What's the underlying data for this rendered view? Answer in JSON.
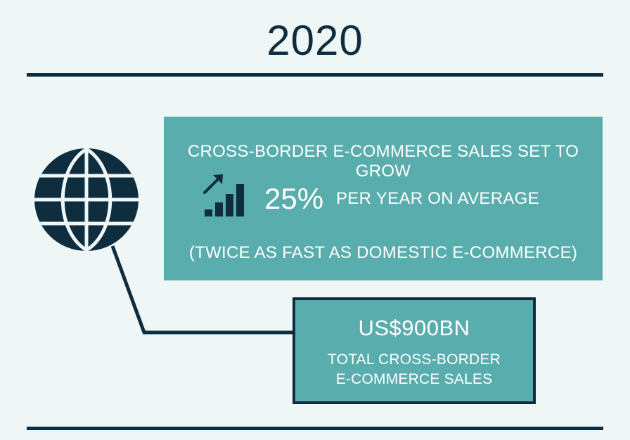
{
  "year": "2020",
  "growth": {
    "headline": "CROSS-BORDER E-COMMERCE SALES SET TO GROW",
    "percent": "25%",
    "percent_caption": "PER YEAR ON AVERAGE",
    "note": "(TWICE AS FAST AS DOMESTIC E-COMMERCE)",
    "icon": "growth-chart-icon"
  },
  "total": {
    "value": "US$900BN",
    "caption_line1": "TOTAL CROSS-BORDER",
    "caption_line2": "E-COMMERCE SALES"
  },
  "globe_icon": "globe-icon",
  "colors": {
    "background": "#eef6f6",
    "navy": "#0e2d3f",
    "teal": "#5aadad",
    "text_light": "#ffffff"
  }
}
